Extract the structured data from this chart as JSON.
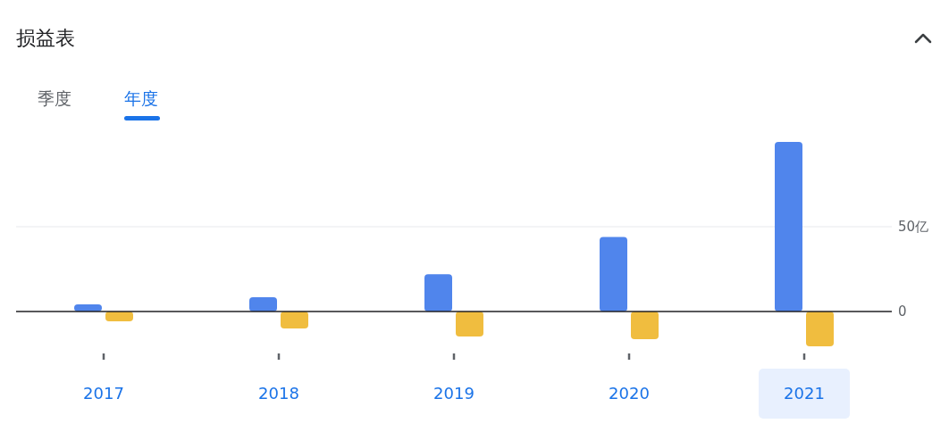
{
  "chart_data": {
    "type": "bar",
    "title": "损益表",
    "annotations": [
      "季度",
      "年度"
    ],
    "categories": [
      "2017",
      "2018",
      "2019",
      "2020",
      "2021"
    ],
    "series": [
      {
        "color": "#5085ec",
        "values": [
          4.2,
          8.4,
          22,
          44,
          100
        ]
      },
      {
        "color": "#f0bd3f",
        "values": [
          -5.8,
          -10,
          -14.7,
          -16.3,
          -20.5
        ]
      }
    ],
    "ylim": [
      -20.5,
      100
    ],
    "yticks": [
      0,
      {
        "value": 50,
        "label": "50亿"
      }
    ],
    "ref_lines": [
      {
        "axis": "y",
        "value": 50,
        "color": "#e8eaed"
      }
    ]
  }
}
